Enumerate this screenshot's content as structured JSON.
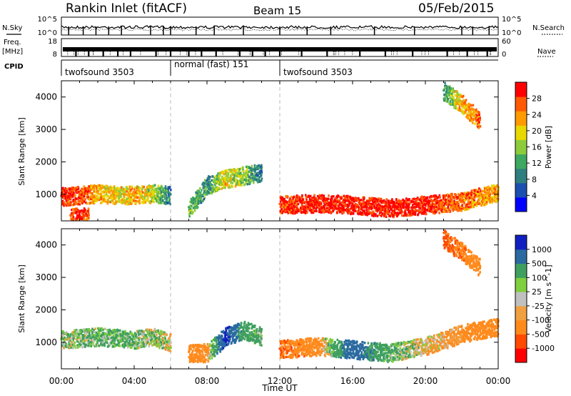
{
  "header": {
    "station": "Rankin Inlet (fitACF)",
    "beam": "Beam 15",
    "date": "05/Feb/2015"
  },
  "meta_panels": {
    "nsky_label": "N.Sky",
    "nsky_ticks": [
      "10^5",
      "10^0"
    ],
    "nsearch_label": "N.Search",
    "nsearch_ticks": [
      "10^5",
      "10^0"
    ],
    "freq_label_1": "Freq.",
    "freq_label_2": "[MHz]",
    "freq_ticks": [
      "18",
      "8"
    ],
    "nave_label": "Nave",
    "nave_ticks": [
      "60",
      "0"
    ],
    "cpid_label": "CPID",
    "cpid_segments": [
      {
        "label": "twofsound 3503",
        "start_hour": 0,
        "end_hour": 6
      },
      {
        "label": "normal (fast) 151",
        "start_hour": 6,
        "end_hour": 12
      },
      {
        "label": "twofsound 3503",
        "start_hour": 12,
        "end_hour": 24
      }
    ]
  },
  "x_axis": {
    "label": "Time UT",
    "ticks": [
      "00:00",
      "04:00",
      "08:00",
      "12:00",
      "16:00",
      "20:00",
      "00:00"
    ]
  },
  "colors": {
    "power": [
      "#0000ff",
      "#1b4fb0",
      "#2f7f7f",
      "#3ea860",
      "#8ccc3c",
      "#e8d800",
      "#ff9a00",
      "#ff5a00",
      "#ff0000"
    ],
    "velocity": [
      "#ff0000",
      "#ff4a00",
      "#ff8a1c",
      "#f0a040",
      "#c0c0c0",
      "#7fcf3f",
      "#3f9f5f",
      "#2a6aa0",
      "#1020c0"
    ]
  },
  "chart_data": [
    {
      "type": "heatmap",
      "title": "Power",
      "ylabel": "Slant Range [km]",
      "xlabel": "",
      "x_range_hours": [
        0,
        24
      ],
      "ylim": [
        180,
        4500
      ],
      "yticks": [
        1000,
        2000,
        3000,
        4000
      ],
      "colorbar": {
        "label": "Power [dB]",
        "range": [
          0,
          32
        ],
        "ticks": [
          "4",
          "8",
          "12",
          "16",
          "20",
          "24",
          "28"
        ]
      },
      "series": [
        {
          "name": "Main F-region echo band",
          "hours": [
            0,
            1,
            2,
            3,
            4,
            5,
            6
          ],
          "range_km": [
            950,
            1000,
            1050,
            1000,
            1000,
            1050,
            1000
          ],
          "power_db": [
            30,
            28,
            22,
            20,
            22,
            18,
            8
          ]
        },
        {
          "name": "Near range echoes",
          "hours": [
            0.5,
            1,
            1.5
          ],
          "range_km": [
            350,
            300,
            350
          ],
          "power_db": [
            28,
            30,
            26
          ]
        },
        {
          "name": "Mid-day patches",
          "hours": [
            7.0,
            8.0,
            9.0,
            10.0,
            11.0
          ],
          "range_km": [
            600,
            1300,
            1500,
            1600,
            1700
          ],
          "power_db": [
            14,
            10,
            20,
            16,
            6
          ]
        },
        {
          "name": "Afternoon band",
          "hours": [
            12,
            14,
            16,
            18,
            20,
            22,
            24
          ],
          "range_km": [
            700,
            750,
            700,
            600,
            700,
            800,
            1100
          ],
          "power_db": [
            28,
            30,
            30,
            30,
            30,
            26,
            22
          ]
        },
        {
          "name": "Late high-range echoes",
          "hours": [
            21,
            22,
            23
          ],
          "range_km": [
            4200,
            3800,
            3300
          ],
          "power_db": [
            12,
            22,
            26
          ]
        }
      ]
    },
    {
      "type": "heatmap",
      "title": "Velocity",
      "ylabel": "Slant Range [km]",
      "xlabel": "Time UT",
      "x_range_hours": [
        0,
        24
      ],
      "ylim": [
        180,
        4500
      ],
      "yticks": [
        1000,
        2000,
        3000,
        4000
      ],
      "colorbar": {
        "label": "Velocity [m s^-1]",
        "range": [
          -1200,
          1200
        ],
        "ticks": [
          "1000",
          "500",
          "100",
          "25",
          "-25",
          "-100",
          "-500",
          "-1000"
        ]
      },
      "series": [
        {
          "name": "Morning band",
          "hours": [
            0,
            1,
            2,
            3,
            4,
            5,
            6
          ],
          "range_km": [
            1100,
            1150,
            1200,
            1150,
            1100,
            1200,
            1000
          ],
          "velocity_ms": [
            50,
            80,
            120,
            150,
            100,
            40,
            0
          ]
        },
        {
          "name": "Mid-day patches",
          "hours": [
            7,
            8,
            9,
            10,
            11
          ],
          "range_km": [
            700,
            700,
            1200,
            1400,
            1200
          ],
          "velocity_ms": [
            -300,
            -200,
            1100,
            300,
            100
          ]
        },
        {
          "name": "Afternoon band",
          "hours": [
            12,
            14,
            16,
            18,
            20,
            22,
            24
          ],
          "range_km": [
            800,
            900,
            800,
            700,
            900,
            1300,
            1500
          ],
          "velocity_ms": [
            -500,
            -300,
            800,
            150,
            -50,
            -200,
            -350
          ]
        },
        {
          "name": "Late high-range echoes",
          "hours": [
            21,
            22,
            23
          ],
          "range_km": [
            4200,
            3800,
            3300
          ],
          "velocity_ms": [
            -600,
            -400,
            -300
          ]
        }
      ]
    }
  ]
}
